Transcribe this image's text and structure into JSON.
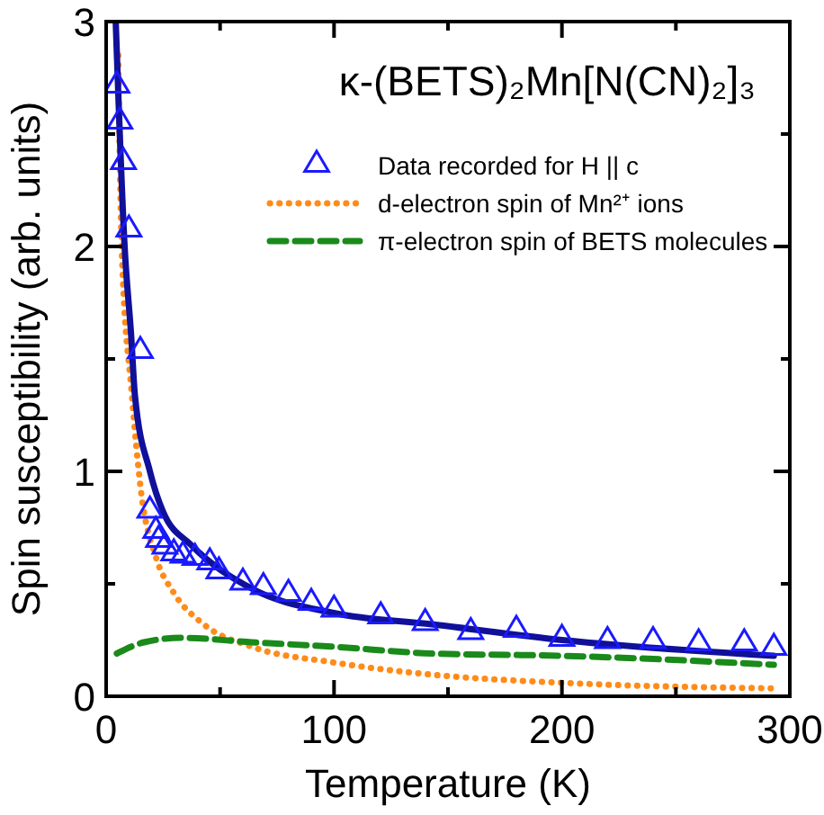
{
  "chart_data": {
    "type": "scatter",
    "title": "κ-(BETS)₂Mn[N(CN)₂]₃",
    "xlabel": "Temperature (K)",
    "ylabel": "Spin susceptibility (arb. units)",
    "xlim": [
      0,
      300
    ],
    "xticks": [
      0,
      {
        "value": 50,
        "label": null
      },
      100,
      {
        "value": 150,
        "label": null
      },
      200,
      {
        "value": 250,
        "label": null
      },
      300
    ],
    "ylim": [
      0,
      3
    ],
    "yticks": [
      0,
      {
        "value": 0.5,
        "label": null
      },
      1,
      {
        "value": 1.5,
        "label": null
      },
      2,
      {
        "value": 2.5,
        "label": null
      },
      3
    ],
    "legend": "top right",
    "grid": false,
    "series": [
      {
        "name": "Data recorded for H || c",
        "marker": "triangle",
        "color": "#1a1aff",
        "x": [
          4.7,
          6,
          7.6,
          10,
          15,
          19.2,
          21.8,
          23,
          25.8,
          29.7,
          33.7,
          39,
          45.5,
          49.5,
          60,
          69,
          80,
          90,
          100,
          120.5,
          140,
          160,
          180,
          200,
          220,
          240,
          260,
          280,
          293
        ],
        "values": [
          2.72,
          2.56,
          2.38,
          2.08,
          1.54,
          0.83,
          0.74,
          0.7,
          0.67,
          0.64,
          0.63,
          0.62,
          0.6,
          0.56,
          0.51,
          0.49,
          0.46,
          0.42,
          0.39,
          0.36,
          0.33,
          0.29,
          0.3,
          0.26,
          0.25,
          0.25,
          0.24,
          0.24,
          0.22
        ]
      },
      {
        "name": "d-electron spin of Mn²⁺ ions",
        "type": "line",
        "line_style": "dotted",
        "color": "#ff8c1a",
        "x": [
          5.3,
          6.8,
          11.3,
          15.2,
          21.8,
          29.7,
          42.8,
          64,
          100,
          143,
          200,
          293
        ],
        "values": [
          2.85,
          2,
          1.34,
          0.92,
          0.62,
          0.46,
          0.32,
          0.22,
          0.15,
          0.096,
          0.06,
          0.035
        ]
      },
      {
        "name": "π-electron spin of BETS molecules",
        "type": "line",
        "line_style": "dashed",
        "color": "#1a8a1a",
        "x": [
          4.7,
          16.6,
          33,
          64,
          100,
          143,
          200,
          293
        ],
        "values": [
          0.19,
          0.24,
          0.26,
          0.24,
          0.22,
          0.19,
          0.18,
          0.14
        ]
      },
      {
        "type": "line",
        "line_style": "solid",
        "color": "#10109a",
        "x": [
          4.2,
          8.1,
          11,
          12.6,
          19.2,
          25,
          37.6,
          63.7,
          100,
          143,
          200,
          293
        ],
        "values": [
          3,
          2,
          1.6,
          1.34,
          1,
          0.82,
          0.67,
          0.48,
          0.37,
          0.32,
          0.25,
          0.18
        ]
      }
    ]
  }
}
